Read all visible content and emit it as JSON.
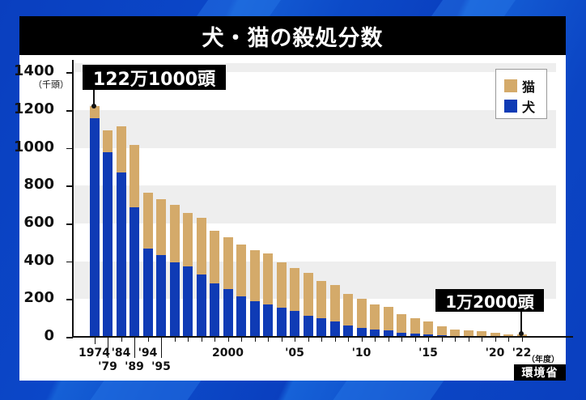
{
  "header": {
    "title": "犬・猫の殺処分数"
  },
  "annotations": {
    "peak_label": "122万1000頭",
    "latest_label": "1万2000頭"
  },
  "legend": {
    "cat_label": "猫",
    "dog_label": "犬"
  },
  "axis": {
    "y_unit": "（千頭）",
    "x_unit": "（年度）",
    "y_ticks": [
      "0",
      "200",
      "400",
      "600",
      "800",
      "1000",
      "1200",
      "1400"
    ]
  },
  "source": "環境省",
  "colors": {
    "cat": "#d4aa6a",
    "dog": "#0f3bb5",
    "title_bg": "#000000",
    "background": "#0a3fbf"
  },
  "chart_data": {
    "type": "bar",
    "stacked": true,
    "title": "犬・猫の殺処分数",
    "xlabel": "（年度）",
    "ylabel": "（千頭）",
    "ylim": [
      0,
      1400
    ],
    "grid": "alternating horizontal bands",
    "legend_position": "top-right",
    "categories": [
      "1974",
      "1979",
      "1984",
      "1989",
      "1994",
      "1995",
      "1996",
      "1997",
      "1998",
      "1999",
      "2000",
      "2001",
      "2002",
      "2003",
      "2004",
      "2005",
      "2006",
      "2007",
      "2008",
      "2009",
      "2010",
      "2011",
      "2012",
      "2013",
      "2014",
      "2015",
      "2016",
      "2017",
      "2018",
      "2019",
      "2020",
      "2021",
      "2022"
    ],
    "x_tick_labels": [
      "1974",
      "'79",
      "'84",
      "'89",
      "'94",
      "'95",
      "2000",
      "'05",
      "'10",
      "'15",
      "'20",
      "'22"
    ],
    "series": [
      {
        "name": "犬",
        "values": [
          1159,
          976,
          869,
          686,
          469,
          432,
          396,
          371,
          331,
          283,
          251,
          214,
          190,
          171,
          154,
          137,
          110,
          97,
          80,
          61,
          47,
          40,
          33,
          23,
          19,
          14,
          9,
          6,
          5,
          3,
          3,
          2,
          2
        ]
      },
      {
        "name": "猫",
        "values": [
          62,
          118,
          244,
          328,
          295,
          298,
          304,
          286,
          298,
          277,
          276,
          273,
          267,
          269,
          240,
          227,
          230,
          200,
          194,
          168,
          156,
          132,
          124,
          98,
          81,
          69,
          45,
          34,
          31,
          26,
          17,
          11,
          10
        ]
      }
    ],
    "totals": [
      1221,
      1094,
      1113,
      1014,
      764,
      730,
      700,
      657,
      629,
      560,
      527,
      487,
      457,
      440,
      394,
      364,
      340,
      297,
      274,
      229,
      203,
      172,
      157,
      121,
      100,
      83,
      54,
      40,
      36,
      29,
      20,
      13,
      12
    ],
    "annotations": [
      {
        "x": "1974",
        "text": "122万1000頭"
      },
      {
        "x": "2022",
        "text": "1万2000頭"
      }
    ],
    "source": "環境省"
  }
}
